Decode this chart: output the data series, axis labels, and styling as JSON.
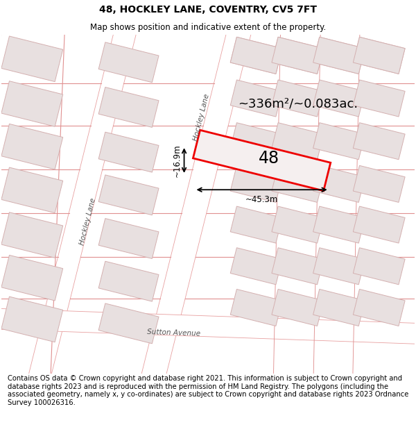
{
  "title": "48, HOCKLEY LANE, COVENTRY, CV5 7FT",
  "subtitle": "Map shows position and indicative extent of the property.",
  "footer": "Contains OS data © Crown copyright and database right 2021. This information is subject to Crown copyright and database rights 2023 and is reproduced with the permission of HM Land Registry. The polygons (including the associated geometry, namely x, y co-ordinates) are subject to Crown copyright and database rights 2023 Ordnance Survey 100026316.",
  "map_bg": "#f7f2f2",
  "road_fill": "#ffffff",
  "road_stroke": "#e8a0a0",
  "building_fill": "#e8e0e0",
  "building_stroke": "#d4b0b0",
  "prop_fill": "#f5efef",
  "prop_stroke": "#ee0000",
  "area_text": "~336m²/~0.083ac.",
  "number_text": "48",
  "dim_width": "~45.3m",
  "dim_height": "~16.9m",
  "title_fontsize": 10,
  "subtitle_fontsize": 8.5,
  "footer_fontsize": 7.2,
  "road_label_color": "#555555",
  "map_border_color": "#cccccc"
}
